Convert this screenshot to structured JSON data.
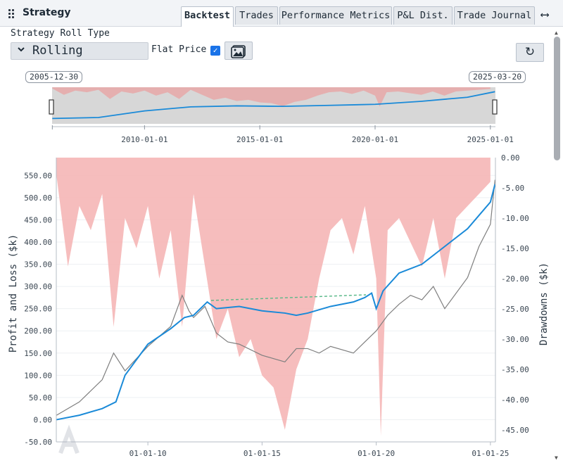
{
  "panel": {
    "title": "Strategy"
  },
  "tabs": [
    {
      "label": "Backtest",
      "active": true
    },
    {
      "label": "Trades",
      "active": false
    },
    {
      "label": "Performance Metrics",
      "active": false
    },
    {
      "label": "P&L Dist.",
      "active": false
    },
    {
      "label": "Trade Journal",
      "active": false
    }
  ],
  "controls": {
    "roll_type_label": "Strategy Roll Type",
    "roll_type_value": "Rolling",
    "flat_price_label": "Flat Price",
    "flat_price_checked": true
  },
  "navigator": {
    "start_date": "2005-12-30",
    "end_date": "2025-03-20",
    "tick_labels": [
      "2010-01-01",
      "2015-01-01",
      "2020-01-01",
      "2025-01-01"
    ]
  },
  "chart_data": {
    "type": "line",
    "y_left_label": "Profit and Loss ($k)",
    "y_right_label": "Drawdowns ($k)",
    "y_left_ticks": [
      "-50.00",
      "0.00",
      "50.00",
      "100.00",
      "150.00",
      "200.00",
      "250.00",
      "300.00",
      "350.00",
      "400.00",
      "450.00",
      "500.00",
      "550.00"
    ],
    "y_right_ticks": [
      "0.00",
      "-5.00",
      "-10.00",
      "-15.00",
      "-20.00",
      "-25.00",
      "-30.00",
      "-35.00",
      "-40.00",
      "-45.00"
    ],
    "x_tick_labels": [
      "01-01-10",
      "01-01-15",
      "01-01-20",
      "01-01-25"
    ],
    "ylim_left": [
      -50,
      590
    ],
    "ylim_right": [
      -47,
      0
    ],
    "x_range": [
      "2005-12-30",
      "2025-03-20"
    ],
    "series": [
      {
        "color": "#1a8ad8",
        "x": [
          2006.0,
          2007.0,
          2008.0,
          2008.6,
          2009.0,
          2010.0,
          2011.0,
          2011.6,
          2012.0,
          2012.6,
          2013.0,
          2014.0,
          2015.0,
          2016.0,
          2016.5,
          2017.0,
          2018.0,
          2019.0,
          2019.5,
          2019.8,
          2020.0,
          2020.3,
          2021.0,
          2022.0,
          2023.0,
          2024.0,
          2024.5,
          2025.0,
          2025.2
        ],
        "values": [
          0,
          10,
          25,
          40,
          100,
          170,
          205,
          230,
          235,
          265,
          250,
          255,
          245,
          240,
          235,
          240,
          255,
          265,
          275,
          285,
          250,
          290,
          330,
          350,
          390,
          430,
          460,
          490,
          530
        ]
      },
      {
        "color": "#7f7f7f",
        "x": [
          2006.0,
          2007.0,
          2008.0,
          2008.5,
          2009.0,
          2010.0,
          2011.0,
          2011.5,
          2011.8,
          2012.0,
          2012.5,
          2013.0,
          2013.5,
          2014.0,
          2015.0,
          2016.0,
          2016.5,
          2017.0,
          2017.5,
          2018.0,
          2019.0,
          2019.5,
          2020.0,
          2020.5,
          2021.0,
          2021.5,
          2022.0,
          2022.5,
          2023.0,
          2024.0,
          2024.5,
          2025.0,
          2025.2
        ],
        "values": [
          10,
          40,
          90,
          150,
          110,
          165,
          210,
          280,
          245,
          230,
          255,
          195,
          175,
          170,
          145,
          130,
          160,
          160,
          150,
          165,
          150,
          175,
          200,
          235,
          260,
          280,
          270,
          300,
          250,
          320,
          390,
          440,
          540
        ]
      }
    ],
    "drawdown": {
      "color": "#f5b6b6",
      "x": [
        2006.0,
        2006.5,
        2007.0,
        2007.5,
        2008.0,
        2008.5,
        2009.0,
        2009.5,
        2010.0,
        2010.5,
        2011.0,
        2011.5,
        2012.0,
        2012.5,
        2013.0,
        2013.5,
        2014.0,
        2014.5,
        2015.0,
        2015.5,
        2016.0,
        2016.5,
        2017.0,
        2017.5,
        2018.0,
        2018.5,
        2019.0,
        2019.5,
        2020.0,
        2020.2,
        2020.5,
        2021.0,
        2021.5,
        2022.0,
        2022.5,
        2023.0,
        2023.5,
        2024.0,
        2024.5,
        2025.0
      ],
      "values": [
        -3,
        -18,
        -8,
        -12,
        -6,
        -28,
        -10,
        -15,
        -8,
        -20,
        -12,
        -28,
        -6,
        -18,
        -30,
        -25,
        -33,
        -30,
        -36,
        -38,
        -45,
        -35,
        -30,
        -20,
        -12,
        -10,
        -16,
        -8,
        -20,
        -46,
        -12,
        -10,
        -14,
        -18,
        -10,
        -20,
        -10,
        -8,
        -6,
        -4
      ]
    },
    "navigator_series": {
      "color": "#1a8ad8",
      "x": [
        2006.0,
        2008.0,
        2010.0,
        2012.0,
        2014.0,
        2016.0,
        2018.0,
        2020.0,
        2022.0,
        2024.0,
        2025.2
      ],
      "values": [
        0,
        20,
        150,
        230,
        250,
        240,
        260,
        280,
        340,
        420,
        530
      ]
    }
  }
}
